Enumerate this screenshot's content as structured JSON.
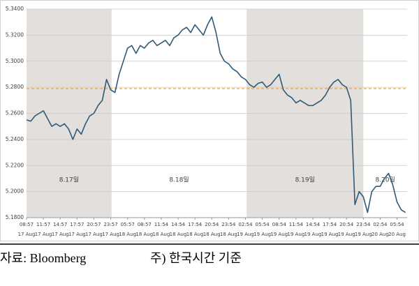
{
  "chart_data": {
    "type": "line",
    "unit_label": "(%)",
    "source": "자료: Bloomberg",
    "note": "주) 한국시간 기준",
    "xlim": [
      0,
      22.6
    ],
    "xticks": [
      {
        "value": 0,
        "label": "08:57"
      },
      {
        "value": 1,
        "label": "11:57"
      },
      {
        "value": 2,
        "label": "14:57"
      },
      {
        "value": 3,
        "label": "17:57"
      },
      {
        "value": 4,
        "label": "20:57"
      },
      {
        "value": 5,
        "label": "23:57"
      },
      {
        "value": 6,
        "label": "05:57"
      },
      {
        "value": 7,
        "label": "08:57"
      },
      {
        "value": 8,
        "label": "11:54"
      },
      {
        "value": 9,
        "label": "14:54"
      },
      {
        "value": 10,
        "label": "17:54"
      },
      {
        "value": 11,
        "label": "20:54"
      },
      {
        "value": 12,
        "label": "23:54"
      },
      {
        "value": 13,
        "label": "02:54"
      },
      {
        "value": 14,
        "label": "05:54"
      },
      {
        "value": 15,
        "label": "08:54"
      },
      {
        "value": 16,
        "label": "11:54"
      },
      {
        "value": 17,
        "label": "14:54"
      },
      {
        "value": 18,
        "label": "17:54"
      },
      {
        "value": 19,
        "label": "20:54"
      },
      {
        "value": 20,
        "label": "23:54"
      },
      {
        "value": 21,
        "label": "02:54"
      },
      {
        "value": 22,
        "label": "05:54"
      }
    ],
    "xtick_dates": [
      "17 Aug",
      "17 Aug",
      "17 Aug",
      "17 Aug",
      "17 Aug",
      "17 Aug",
      "18 Aug",
      "18 Aug",
      "18 Aug",
      "18 Aug",
      "18 Aug",
      "18 Aug",
      "18 Aug",
      "19 Aug",
      "19 Aug",
      "19 Aug",
      "19 Aug",
      "19 Aug",
      "19 Aug",
      "19 Aug",
      "19 Aug",
      "20 Aug",
      "20 Aug"
    ],
    "ylim": [
      5.18,
      5.34
    ],
    "yticks": [
      {
        "value": 5.18,
        "label": "5.1800"
      },
      {
        "value": 5.2,
        "label": "5.2000"
      },
      {
        "value": 5.22,
        "label": "5.2200"
      },
      {
        "value": 5.24,
        "label": "5.2400"
      },
      {
        "value": 5.26,
        "label": "5.2600"
      },
      {
        "value": 5.28,
        "label": "5.2800"
      },
      {
        "value": 5.3,
        "label": "5.3000"
      },
      {
        "value": 5.32,
        "label": "5.3200"
      },
      {
        "value": 5.34,
        "label": "5.3400"
      }
    ],
    "grid": true,
    "periods": [
      {
        "label": "8.17일",
        "from": 0,
        "to": 5.05,
        "shaded": true
      },
      {
        "label": "8.18일",
        "from": 5.05,
        "to": 13.07,
        "shaded": false
      },
      {
        "label": "8.19일",
        "from": 13.07,
        "to": 20.0,
        "shaded": true
      },
      {
        "label": "8.20일",
        "from": 20.0,
        "to": 22.6,
        "shaded": false
      }
    ],
    "shade_color": "#e3dfdc",
    "reference_line": {
      "value": 5.279,
      "color": "#f0a030"
    },
    "series": [
      {
        "color": "#2e5a78",
        "x": [
          0,
          0.25,
          0.5,
          0.75,
          1,
          1.25,
          1.5,
          1.75,
          2,
          2.25,
          2.5,
          2.75,
          3,
          3.25,
          3.5,
          3.75,
          4,
          4.25,
          4.5,
          4.75,
          5,
          5.25,
          5.5,
          5.75,
          6,
          6.25,
          6.5,
          6.75,
          7,
          7.25,
          7.5,
          7.75,
          8,
          8.25,
          8.5,
          8.75,
          9,
          9.25,
          9.5,
          9.75,
          10,
          10.25,
          10.5,
          10.75,
          11,
          11.25,
          11.5,
          11.75,
          12,
          12.25,
          12.5,
          12.75,
          13,
          13.25,
          13.5,
          13.75,
          14,
          14.25,
          14.5,
          14.75,
          15,
          15.25,
          15.5,
          15.75,
          16,
          16.25,
          16.5,
          16.75,
          17,
          17.25,
          17.5,
          17.75,
          18,
          18.25,
          18.5,
          18.75,
          19,
          19.25,
          19.5,
          19.75,
          20,
          20.25,
          20.5,
          20.75,
          21,
          21.25,
          21.5,
          21.75,
          22,
          22.25,
          22.5
        ],
        "values": [
          5.255,
          5.254,
          5.258,
          5.26,
          5.262,
          5.256,
          5.25,
          5.252,
          5.25,
          5.252,
          5.248,
          5.24,
          5.248,
          5.244,
          5.252,
          5.258,
          5.26,
          5.266,
          5.27,
          5.286,
          5.278,
          5.276,
          5.29,
          5.3,
          5.31,
          5.312,
          5.306,
          5.312,
          5.31,
          5.314,
          5.316,
          5.312,
          5.314,
          5.316,
          5.312,
          5.318,
          5.32,
          5.324,
          5.326,
          5.322,
          5.328,
          5.324,
          5.32,
          5.328,
          5.334,
          5.322,
          5.306,
          5.3,
          5.298,
          5.294,
          5.292,
          5.288,
          5.286,
          5.282,
          5.28,
          5.283,
          5.284,
          5.28,
          5.282,
          5.286,
          5.29,
          5.278,
          5.274,
          5.272,
          5.268,
          5.27,
          5.268,
          5.266,
          5.266,
          5.268,
          5.27,
          5.274,
          5.28,
          5.284,
          5.286,
          5.282,
          5.28,
          5.27,
          5.19,
          5.2,
          5.196,
          5.184,
          5.2,
          5.204,
          5.204,
          5.21,
          5.214,
          5.205,
          5.192,
          5.186,
          5.184
        ]
      }
    ]
  }
}
